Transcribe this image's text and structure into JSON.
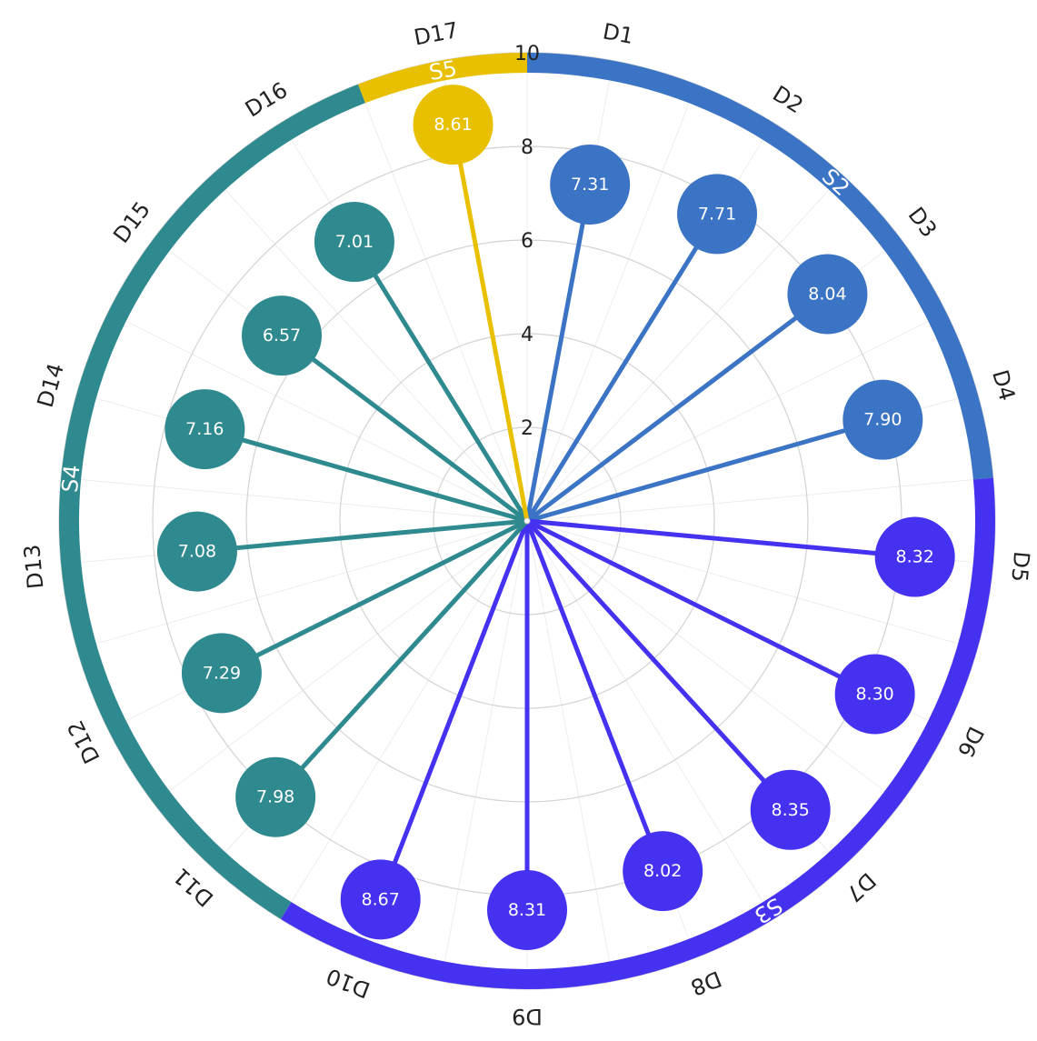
{
  "chart_data": {
    "type": "radial-lollipop",
    "angular_axis": {
      "categories": [
        "D1",
        "D2",
        "D3",
        "D4",
        "D5",
        "D6",
        "D7",
        "D8",
        "D9",
        "D10",
        "D11",
        "D12",
        "D13",
        "D14",
        "D15",
        "D16",
        "D17"
      ],
      "direction": "clockwise",
      "start": "top"
    },
    "radial_axis": {
      "range": [
        0,
        10
      ],
      "tick_values": [
        2,
        4,
        6,
        8,
        10
      ],
      "tick_labels": [
        "2",
        "4",
        "6",
        "8",
        "10"
      ],
      "grid": true
    },
    "groups": [
      {
        "label": "S2",
        "color": "#3b74c5",
        "categories": [
          "D1",
          "D2",
          "D3",
          "D4"
        ]
      },
      {
        "label": "S3",
        "color": "#4532f0",
        "categories": [
          "D5",
          "D6",
          "D7",
          "D8",
          "D9",
          "D10"
        ]
      },
      {
        "label": "S4",
        "color": "#2f8a8f",
        "categories": [
          "D11",
          "D12",
          "D13",
          "D14",
          "D15",
          "D16"
        ]
      },
      {
        "label": "S5",
        "color": "#e8c000",
        "categories": [
          "D17"
        ]
      }
    ],
    "points": [
      {
        "category": "D1",
        "value": 7.31,
        "label": "7.31",
        "group": "S2"
      },
      {
        "category": "D2",
        "value": 7.71,
        "label": "7.71",
        "group": "S2"
      },
      {
        "category": "D3",
        "value": 8.04,
        "label": "8.04",
        "group": "S2"
      },
      {
        "category": "D4",
        "value": 7.9,
        "label": "7.90",
        "group": "S2"
      },
      {
        "category": "D5",
        "value": 8.32,
        "label": "8.32",
        "group": "S3"
      },
      {
        "category": "D6",
        "value": 8.3,
        "label": "8.30",
        "group": "S3"
      },
      {
        "category": "D7",
        "value": 8.35,
        "label": "8.35",
        "group": "S3"
      },
      {
        "category": "D8",
        "value": 8.02,
        "label": "8.02",
        "group": "S3"
      },
      {
        "category": "D9",
        "value": 8.31,
        "label": "8.31",
        "group": "S3"
      },
      {
        "category": "D10",
        "value": 8.67,
        "label": "8.67",
        "group": "S3"
      },
      {
        "category": "D11",
        "value": 7.98,
        "label": "7.98",
        "group": "S4"
      },
      {
        "category": "D12",
        "value": 7.29,
        "label": "7.29",
        "group": "S4"
      },
      {
        "category": "D13",
        "value": 7.08,
        "label": "7.08",
        "group": "S4"
      },
      {
        "category": "D14",
        "value": 7.16,
        "label": "7.16",
        "group": "S4"
      },
      {
        "category": "D15",
        "value": 6.57,
        "label": "6.57",
        "group": "S4"
      },
      {
        "category": "D16",
        "value": 7.01,
        "label": "7.01",
        "group": "S4"
      },
      {
        "category": "D17",
        "value": 8.61,
        "label": "8.61",
        "group": "S5"
      }
    ]
  }
}
